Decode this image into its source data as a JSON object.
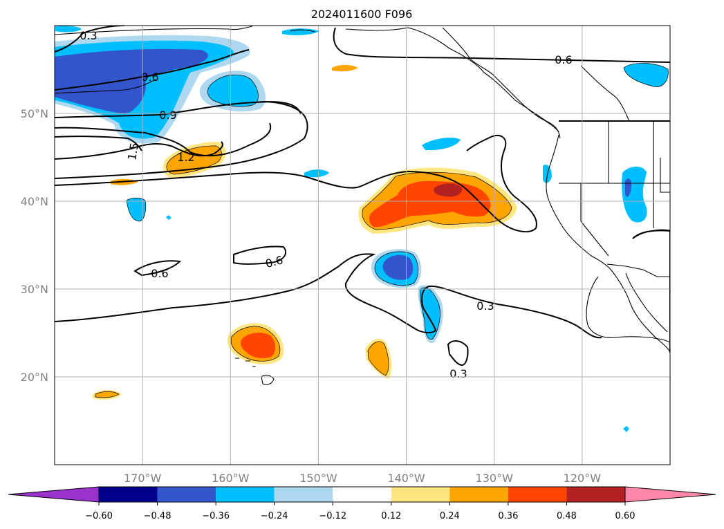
{
  "title": "2024011600 F096",
  "map": {
    "lon_range": [
      -180,
      -110
    ],
    "lat_range": [
      10,
      60
    ],
    "lon_ticks": [
      {
        "value": -170,
        "label": "170°W"
      },
      {
        "value": -160,
        "label": "160°W"
      },
      {
        "value": -150,
        "label": "150°W"
      },
      {
        "value": -140,
        "label": "140°W"
      },
      {
        "value": -130,
        "label": "130°W"
      },
      {
        "value": -120,
        "label": "120°W"
      }
    ],
    "lat_ticks": [
      {
        "value": 50,
        "label": "50°N"
      },
      {
        "value": 40,
        "label": "40°N"
      },
      {
        "value": 30,
        "label": "30°N"
      },
      {
        "value": 20,
        "label": "20°N"
      }
    ],
    "grid": true
  },
  "contour_labels": [
    "0.3",
    "0.6",
    "0.9",
    "1.2",
    "1.5",
    "0.6",
    "0.6",
    "0.6",
    "0.3",
    "0.3"
  ],
  "colorbar": {
    "extend": "both",
    "levels": [
      "−0.60",
      "−0.48",
      "−0.36",
      "−0.24",
      "−0.12",
      "0.12",
      "0.24",
      "0.36",
      "0.48",
      "0.60"
    ],
    "colors": [
      "#9933cc",
      "#00008b",
      "#3355cc",
      "#00bfff",
      "#add8f0",
      "#ffffff",
      "#ffe680",
      "#ffa500",
      "#ff4500",
      "#b22222",
      "#ff88aa"
    ]
  }
}
